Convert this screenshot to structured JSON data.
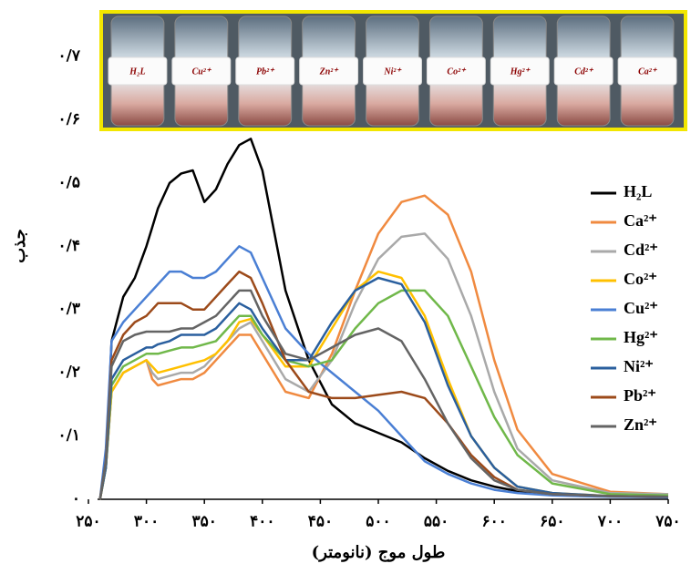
{
  "chart_data": {
    "type": "line",
    "x_label": "طول موج (نانومتر)",
    "y_label": "جذب",
    "image_labels": [
      "H₂L",
      "Cu²⁺",
      "Pb²⁺",
      "Zn²⁺",
      "Ni²⁺",
      "Co²⁺",
      "Hg²⁺",
      "Cd²⁺",
      "Ca²⁺"
    ],
    "xlim": [
      250,
      750
    ],
    "ylim": [
      0,
      0.7
    ],
    "xticks": [
      {
        "value": 250,
        "label": "۲۵۰"
      },
      {
        "value": 300,
        "label": "۳۰۰"
      },
      {
        "value": 350,
        "label": "۳۵۰"
      },
      {
        "value": 400,
        "label": "۴۰۰"
      },
      {
        "value": 450,
        "label": "۴۵۰"
      },
      {
        "value": 500,
        "label": "۵۰۰"
      },
      {
        "value": 550,
        "label": "۵۵۰"
      },
      {
        "value": 600,
        "label": "۶۰۰"
      },
      {
        "value": 650,
        "label": "۶۵۰"
      },
      {
        "value": 700,
        "label": "۷۰۰"
      },
      {
        "value": 750,
        "label": "۷۵۰"
      }
    ],
    "yticks": [
      {
        "value": 0,
        "label": "۰"
      },
      {
        "value": 0.1,
        "label": "۰/۱"
      },
      {
        "value": 0.2,
        "label": "۰/۲"
      },
      {
        "value": 0.3,
        "label": "۰/۳"
      },
      {
        "value": 0.4,
        "label": "۰/۴"
      },
      {
        "value": 0.5,
        "label": "۰/۵"
      },
      {
        "value": 0.6,
        "label": "۰/۶"
      },
      {
        "value": 0.7,
        "label": "۰/۷"
      }
    ],
    "x": [
      260,
      265,
      270,
      280,
      290,
      300,
      305,
      310,
      320,
      330,
      340,
      350,
      360,
      370,
      380,
      390,
      400,
      420,
      440,
      460,
      480,
      500,
      520,
      540,
      560,
      580,
      600,
      620,
      650,
      700,
      750
    ],
    "series": [
      {
        "name": "H₂L",
        "color": "#000000",
        "values": [
          0,
          0.05,
          0.25,
          0.32,
          0.35,
          0.4,
          0.43,
          0.46,
          0.5,
          0.515,
          0.52,
          0.47,
          0.49,
          0.53,
          0.56,
          0.57,
          0.52,
          0.33,
          0.22,
          0.15,
          0.12,
          0.105,
          0.09,
          0.065,
          0.045,
          0.03,
          0.02,
          0.013,
          0.008,
          0.005,
          0.003
        ]
      },
      {
        "name": "Ca²⁺",
        "color": "#f08a40",
        "values": [
          0,
          0.05,
          0.17,
          0.2,
          0.21,
          0.22,
          0.19,
          0.18,
          0.185,
          0.19,
          0.19,
          0.2,
          0.22,
          0.24,
          0.26,
          0.26,
          0.23,
          0.17,
          0.16,
          0.23,
          0.33,
          0.42,
          0.47,
          0.48,
          0.45,
          0.36,
          0.22,
          0.11,
          0.04,
          0.012,
          0.008
        ]
      },
      {
        "name": "Cd²⁺",
        "color": "#a9a9a9",
        "values": [
          0,
          0.05,
          0.17,
          0.2,
          0.21,
          0.22,
          0.2,
          0.19,
          0.195,
          0.2,
          0.2,
          0.21,
          0.23,
          0.25,
          0.27,
          0.28,
          0.25,
          0.19,
          0.17,
          0.22,
          0.31,
          0.38,
          0.415,
          0.42,
          0.38,
          0.29,
          0.17,
          0.08,
          0.03,
          0.01,
          0.008
        ]
      },
      {
        "name": "Co²⁺",
        "color": "#ffc000",
        "values": [
          0,
          0.05,
          0.17,
          0.2,
          0.21,
          0.22,
          0.21,
          0.2,
          0.205,
          0.21,
          0.215,
          0.22,
          0.23,
          0.25,
          0.28,
          0.285,
          0.26,
          0.21,
          0.21,
          0.27,
          0.33,
          0.36,
          0.35,
          0.29,
          0.19,
          0.1,
          0.05,
          0.02,
          0.01,
          0.005,
          0.004
        ]
      },
      {
        "name": "Cu²⁺",
        "color": "#4a7fd4",
        "values": [
          0,
          0.08,
          0.25,
          0.28,
          0.3,
          0.32,
          0.33,
          0.34,
          0.36,
          0.36,
          0.35,
          0.35,
          0.36,
          0.38,
          0.4,
          0.39,
          0.35,
          0.27,
          0.23,
          0.2,
          0.17,
          0.14,
          0.1,
          0.06,
          0.04,
          0.025,
          0.015,
          0.01,
          0.006,
          0.004,
          0.003
        ]
      },
      {
        "name": "Hg²⁺",
        "color": "#70b84a",
        "values": [
          0,
          0.05,
          0.18,
          0.21,
          0.22,
          0.23,
          0.23,
          0.23,
          0.235,
          0.24,
          0.24,
          0.245,
          0.25,
          0.27,
          0.29,
          0.29,
          0.26,
          0.22,
          0.21,
          0.22,
          0.27,
          0.31,
          0.33,
          0.33,
          0.29,
          0.21,
          0.13,
          0.07,
          0.025,
          0.008,
          0.006
        ]
      },
      {
        "name": "Ni²⁺",
        "color": "#2a5f9e",
        "values": [
          0,
          0.05,
          0.19,
          0.22,
          0.23,
          0.24,
          0.24,
          0.245,
          0.25,
          0.26,
          0.26,
          0.26,
          0.27,
          0.29,
          0.31,
          0.3,
          0.27,
          0.22,
          0.22,
          0.28,
          0.33,
          0.35,
          0.34,
          0.28,
          0.18,
          0.1,
          0.05,
          0.02,
          0.01,
          0.005,
          0.004
        ]
      },
      {
        "name": "Pb²⁺",
        "color": "#9c4a1a",
        "values": [
          0,
          0.06,
          0.22,
          0.26,
          0.28,
          0.29,
          0.3,
          0.31,
          0.31,
          0.31,
          0.3,
          0.3,
          0.32,
          0.34,
          0.36,
          0.35,
          0.31,
          0.22,
          0.17,
          0.16,
          0.16,
          0.165,
          0.17,
          0.16,
          0.12,
          0.07,
          0.035,
          0.015,
          0.008,
          0.005,
          0.004
        ]
      },
      {
        "name": "Zn²⁺",
        "color": "#646464",
        "values": [
          0,
          0.06,
          0.21,
          0.25,
          0.26,
          0.265,
          0.265,
          0.265,
          0.265,
          0.27,
          0.27,
          0.28,
          0.29,
          0.31,
          0.33,
          0.33,
          0.29,
          0.23,
          0.22,
          0.24,
          0.26,
          0.27,
          0.25,
          0.19,
          0.12,
          0.065,
          0.03,
          0.015,
          0.008,
          0.005,
          0.004
        ]
      }
    ],
    "legend": "right"
  }
}
